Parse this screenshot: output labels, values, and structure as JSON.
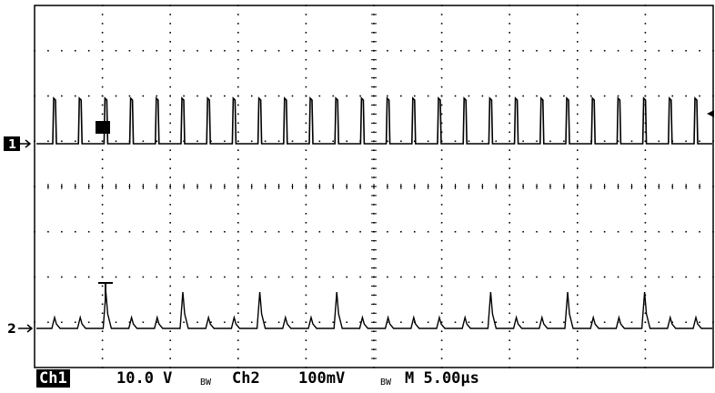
{
  "channel_markers": {
    "ch1_label": "1",
    "ch2_label": "2"
  },
  "readout": {
    "ch1_badge": "Ch1",
    "ch1_scale": "10.0 V",
    "ch1_bw_symbol": "BW",
    "ch2_label": "Ch2",
    "ch2_scale": "100mV",
    "ch2_bw_symbol": "BW",
    "timebase": "M 5.00µs"
  },
  "colors": {
    "trace": "#000000",
    "grid": "#000000",
    "background": "#ffffff"
  },
  "icons": {
    "ch1_ground_marker": "arrow-right-icon",
    "ch2_ground_marker": "arrow-right-icon",
    "trigger_level_marker": "arrow-left-icon",
    "trigger_position_marker": "trigger-T-icon"
  }
}
